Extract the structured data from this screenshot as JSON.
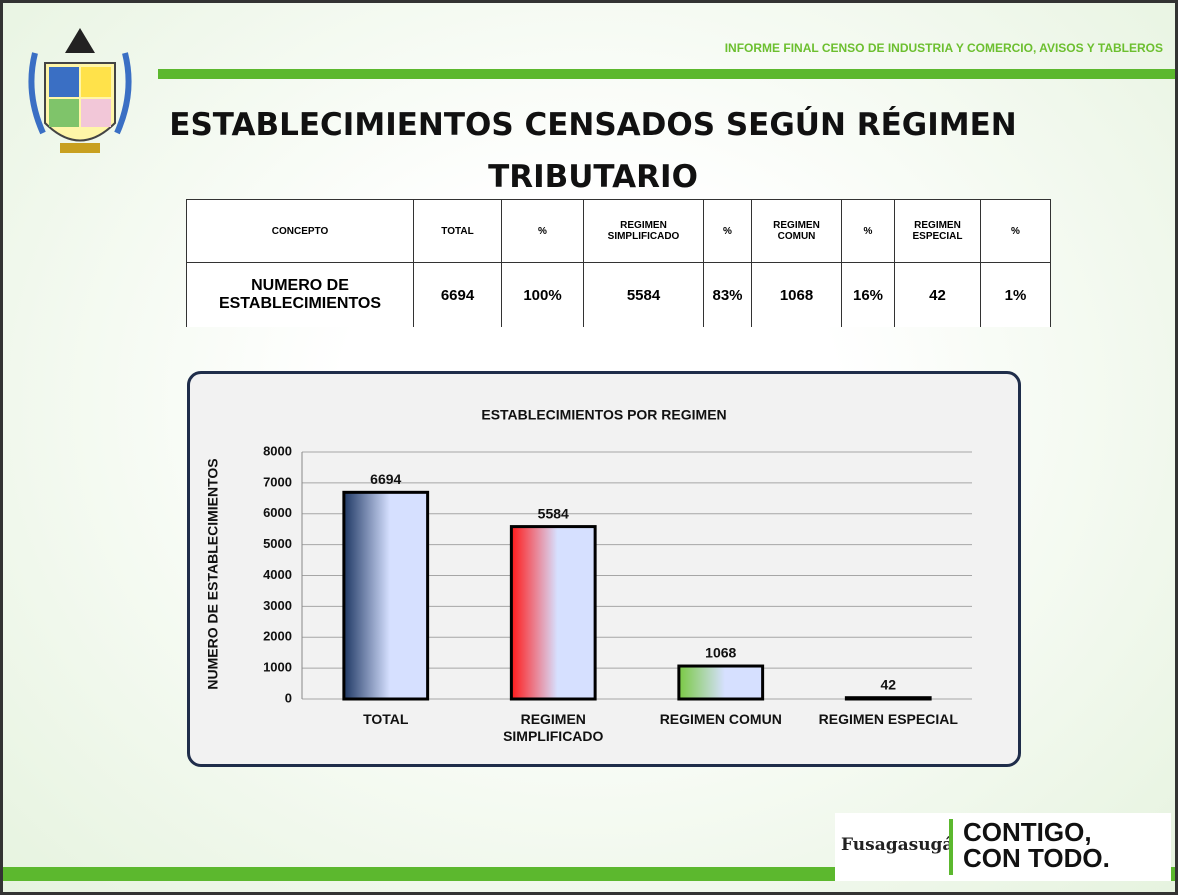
{
  "header": {
    "report": "INFORME FINAL CENSO DE INDUSTRIA Y COMERCIO, AVISOS Y TABLEROS"
  },
  "title": "ESTABLECIMIENTOS CENSADOS SEGÚN RÉGIMEN TRIBUTARIO",
  "table": {
    "columns": [
      "CONCEPTO",
      "TOTAL",
      "%",
      "REGIMEN SIMPLIFICADO",
      "%",
      "REGIMEN COMUN",
      "%",
      "REGIMEN ESPECIAL",
      "%"
    ],
    "rows": [
      [
        "NUMERO DE ESTABLECIMIENTOS",
        "6694",
        "100%",
        "5584",
        "83%",
        "1068",
        "16%",
        "42",
        "1%"
      ]
    ]
  },
  "chart_data": {
    "type": "bar",
    "title": "ESTABLECIMIENTOS POR REGIMEN",
    "y_label": "NUMERO DE ESTABLECIMIENTOS",
    "categories": [
      "TOTAL",
      "REGIMEN SIMPLIFICADO",
      "REGIMEN COMUN",
      "REGIMEN ESPECIAL"
    ],
    "values": [
      6694,
      5584,
      1068,
      42
    ],
    "colors": [
      "#1f3864",
      "#ff1a1a",
      "#7ac943",
      "#1f3864"
    ],
    "ylim": [
      0,
      8000
    ],
    "yticks": [
      0,
      1000,
      2000,
      3000,
      4000,
      5000,
      6000,
      7000,
      8000
    ],
    "grid": true
  },
  "footer": {
    "city": "Fusagasugá",
    "slogan_1": "CONTIGO,",
    "slogan_2": "CON TODO."
  }
}
